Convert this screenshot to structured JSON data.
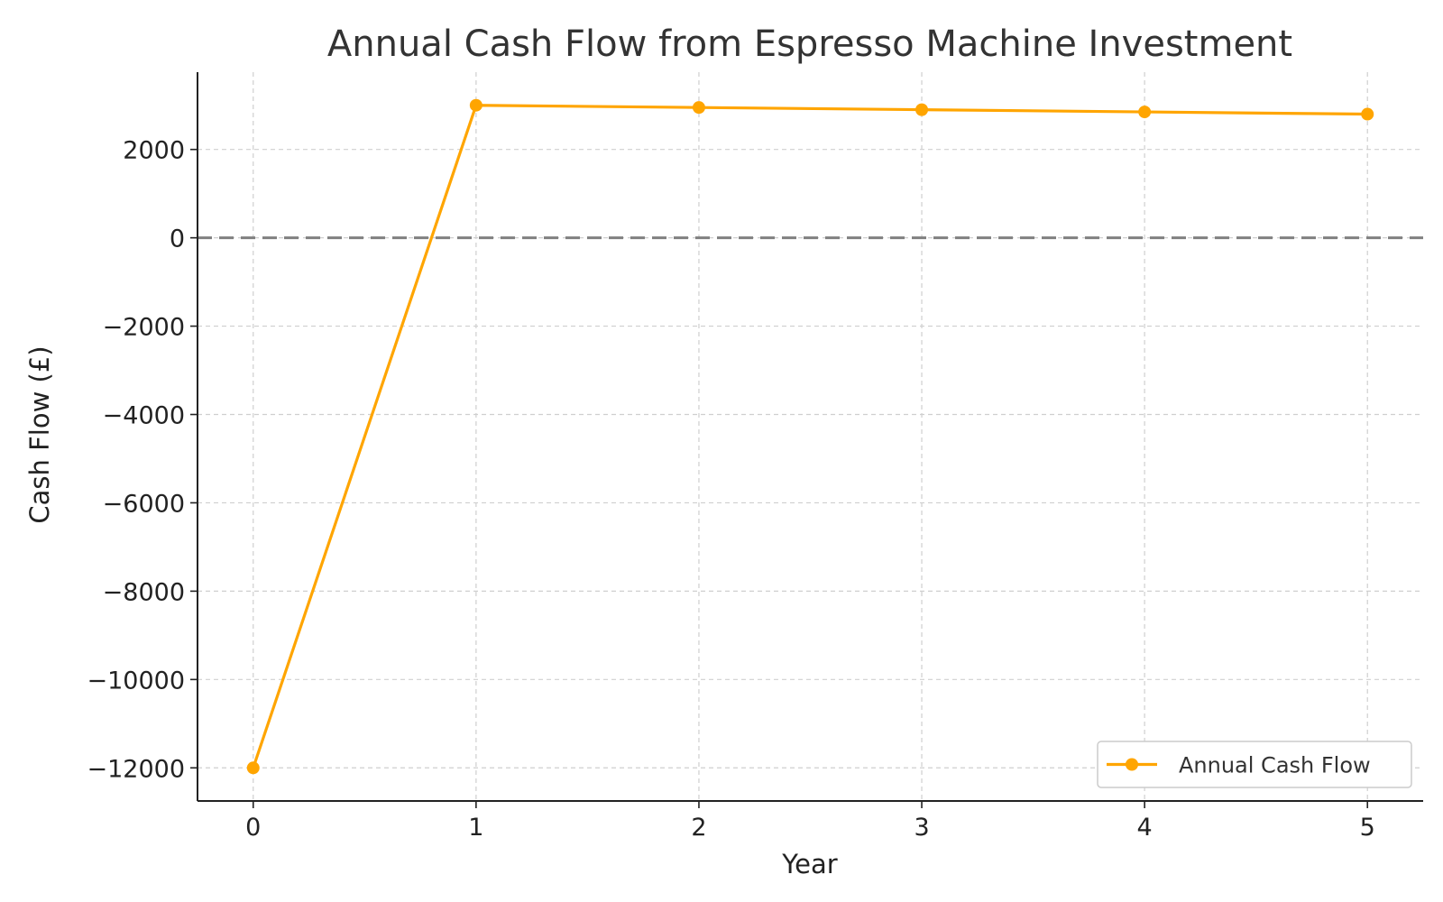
{
  "chart_data": {
    "type": "line",
    "title": "Annual Cash Flow from Espresso Machine Investment",
    "xlabel": "Year",
    "ylabel": "Cash Flow (£)",
    "x": [
      0,
      1,
      2,
      3,
      4,
      5
    ],
    "xlim": [
      -0.25,
      5.25
    ],
    "ylim": [
      -12750,
      3750
    ],
    "x_ticks": [
      0,
      1,
      2,
      3,
      4,
      5
    ],
    "y_ticks": [
      2000,
      0,
      -2000,
      -4000,
      -6000,
      -8000,
      -10000,
      -12000
    ],
    "x_tick_labels": [
      "0",
      "1",
      "2",
      "3",
      "4",
      "5"
    ],
    "y_tick_labels": [
      "2000",
      "0",
      "−2000",
      "−4000",
      "−6000",
      "−8000",
      "−10000",
      "−12000"
    ],
    "grid": true,
    "zero_line": {
      "value": 0,
      "style": "dashed",
      "color": "#808080"
    },
    "legend": {
      "position": "lower-right",
      "entries": [
        "Annual Cash Flow"
      ]
    },
    "series": [
      {
        "name": "Annual Cash Flow",
        "color": "#FFA500",
        "values": [
          -12000,
          3000,
          2950,
          2900,
          2850,
          2800
        ]
      }
    ]
  }
}
